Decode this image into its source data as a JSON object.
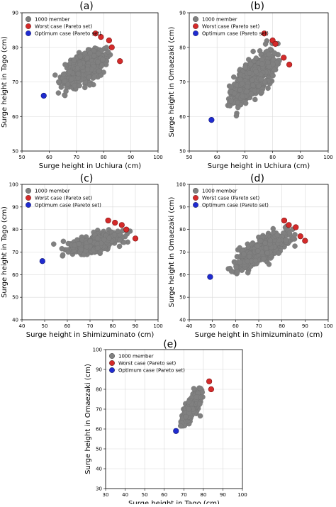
{
  "colors": {
    "member": "#808080",
    "worst": "#d42a2a",
    "optimum": "#1f2bd0",
    "grid": "#d9d9d9"
  },
  "chart_data": [
    {
      "type": "scatter",
      "panel_label": "(a)",
      "xlabel": "Surge height in Uchiura (cm)",
      "ylabel": "Surge height in Tago (cm)",
      "xlim": [
        50,
        100
      ],
      "ylim": [
        50,
        90
      ],
      "xticks": [
        50,
        60,
        70,
        80,
        90,
        100
      ],
      "yticks": [
        50,
        60,
        70,
        80,
        90
      ],
      "grid": true,
      "legend_position": "top-left",
      "legend": [
        "1000 member",
        "Worst case (Pareto set)",
        "Optimum case (Pareto set)"
      ],
      "cloud": {
        "x_range": [
          60,
          84
        ],
        "y_range": [
          65,
          82
        ],
        "center": [
          73,
          74
        ],
        "slope": 0.35
      },
      "worst": [
        [
          77,
          84
        ],
        [
          79,
          83
        ],
        [
          82,
          82
        ],
        [
          83,
          80
        ],
        [
          86,
          76
        ]
      ],
      "optimum": [
        [
          58,
          66
        ]
      ]
    },
    {
      "type": "scatter",
      "panel_label": "(b)",
      "xlabel": "Surge height in Uchiura (cm)",
      "ylabel": "Surge height in Omaezaki (cm)",
      "xlim": [
        50,
        100
      ],
      "ylim": [
        50,
        90
      ],
      "xticks": [
        50,
        60,
        70,
        80,
        90,
        100
      ],
      "yticks": [
        50,
        60,
        70,
        80,
        90
      ],
      "grid": true,
      "legend_position": "top-left",
      "legend": [
        "1000 member",
        "Worst case (Pareto set)",
        "Optimum case (Pareto set)"
      ],
      "cloud": {
        "x_range": [
          60,
          84
        ],
        "y_range": [
          60,
          82
        ],
        "center": [
          73,
          71
        ],
        "slope": 0.6
      },
      "worst": [
        [
          77,
          84
        ],
        [
          80,
          82
        ],
        [
          81,
          81
        ],
        [
          84,
          77
        ],
        [
          86,
          75
        ]
      ],
      "optimum": [
        [
          58,
          59
        ]
      ]
    },
    {
      "type": "scatter",
      "panel_label": "(c)",
      "xlabel": "Surge height in Shimizuminato (cm)",
      "ylabel": "Surge height in Tago (cm)",
      "xlim": [
        40,
        100
      ],
      "ylim": [
        40,
        100
      ],
      "xticks": [
        40,
        50,
        60,
        70,
        80,
        90,
        100
      ],
      "yticks": [
        40,
        50,
        60,
        70,
        80,
        90,
        100
      ],
      "grid": true,
      "legend_position": "top-left",
      "legend": [
        "1000 member",
        "Worst case (Pareto set)",
        "Optimum case (Pareto set)"
      ],
      "cloud": {
        "x_range": [
          52,
          88
        ],
        "y_range": [
          66,
          82
        ],
        "center": [
          72,
          74
        ],
        "slope": 0.2
      },
      "worst": [
        [
          78,
          84
        ],
        [
          81,
          83
        ],
        [
          84,
          82
        ],
        [
          86,
          80
        ],
        [
          90,
          76
        ]
      ],
      "optimum": [
        [
          49,
          66
        ]
      ]
    },
    {
      "type": "scatter",
      "panel_label": "(d)",
      "xlabel": "Surge height in Shimizuminato (cm)",
      "ylabel": "Surge height in Omaezaki (cm)",
      "xlim": [
        40,
        100
      ],
      "ylim": [
        40,
        100
      ],
      "xticks": [
        40,
        50,
        60,
        70,
        80,
        90,
        100
      ],
      "yticks": [
        40,
        50,
        60,
        70,
        80,
        90,
        100
      ],
      "grid": true,
      "legend_position": "top-left",
      "legend": [
        "1000 member",
        "Worst case (Pareto set)",
        "Optimum case (Pareto set)"
      ],
      "cloud": {
        "x_range": [
          52,
          88
        ],
        "y_range": [
          60,
          82
        ],
        "center": [
          72,
          71
        ],
        "slope": 0.55
      },
      "worst": [
        [
          81,
          84
        ],
        [
          83,
          82
        ],
        [
          86,
          81
        ],
        [
          88,
          77
        ],
        [
          90,
          75
        ]
      ],
      "optimum": [
        [
          49,
          59
        ]
      ]
    },
    {
      "type": "scatter",
      "panel_label": "(e)",
      "xlabel": "Surge height in Tago (cm)",
      "ylabel": "Surge height in Omaezaki (cm)",
      "xlim": [
        30,
        100
      ],
      "ylim": [
        30,
        100
      ],
      "xticks": [
        30,
        40,
        50,
        60,
        70,
        80,
        90,
        100
      ],
      "yticks": [
        30,
        40,
        50,
        60,
        70,
        80,
        90,
        100
      ],
      "grid": true,
      "legend_position": "top-left",
      "legend": [
        "1000 member",
        "Worst case (Pareto set)",
        "Optimum case (Pareto set)"
      ],
      "cloud": {
        "x_range": [
          67,
          82
        ],
        "y_range": [
          60,
          81
        ],
        "center": [
          74,
          71
        ],
        "slope": 1.35
      },
      "worst": [
        [
          83,
          84
        ],
        [
          84,
          80
        ]
      ],
      "optimum": [
        [
          66,
          59
        ]
      ]
    }
  ]
}
